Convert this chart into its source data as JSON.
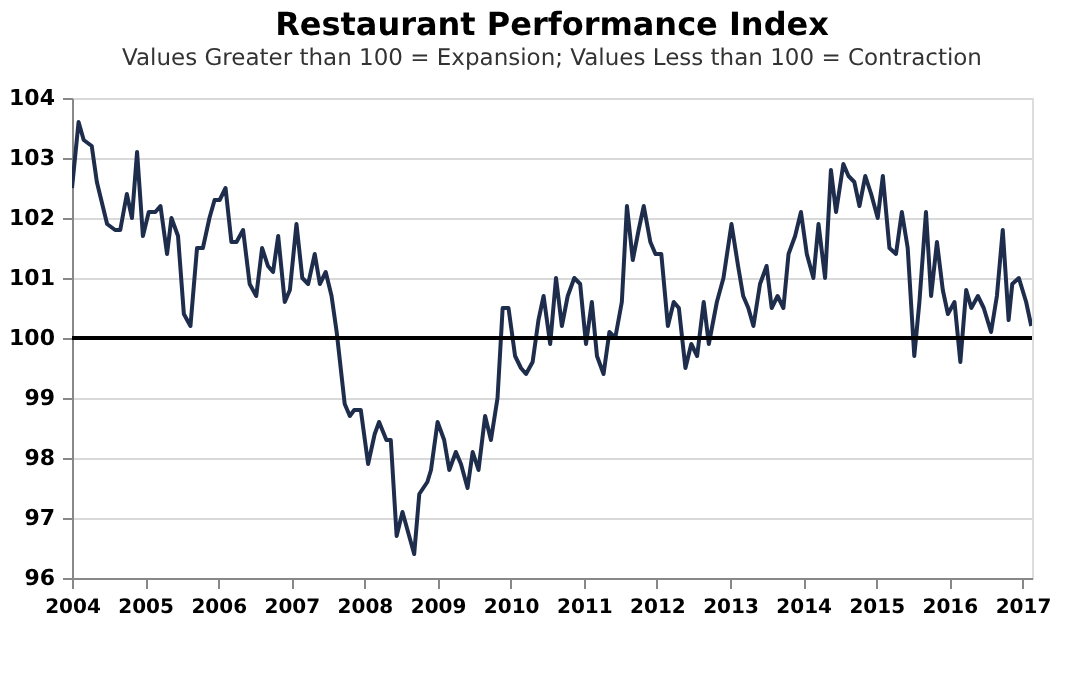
{
  "chart_data": {
    "type": "line",
    "title": "Restaurant Performance Index",
    "subtitle": "Values Greater than 100 = Expansion; Values Less than 100 = Contraction",
    "x": [
      2004.0,
      2004.09,
      2004.16,
      2004.27,
      2004.34,
      2004.48,
      2004.59,
      2004.66,
      2004.75,
      2004.82,
      2004.89,
      2004.97,
      2005.05,
      2005.14,
      2005.21,
      2005.3,
      2005.36,
      2005.45,
      2005.53,
      2005.62,
      2005.71,
      2005.79,
      2005.88,
      2005.95,
      2006.02,
      2006.1,
      2006.18,
      2006.25,
      2006.34,
      2006.43,
      2006.52,
      2006.6,
      2006.68,
      2006.75,
      2006.82,
      2006.91,
      2006.98,
      2007.07,
      2007.15,
      2007.23,
      2007.32,
      2007.39,
      2007.47,
      2007.55,
      2007.62,
      2007.73,
      2007.8,
      2007.86,
      2007.95,
      2008.05,
      2008.14,
      2008.2,
      2008.3,
      2008.36,
      2008.44,
      2008.52,
      2008.68,
      2008.75,
      2008.86,
      2008.91,
      2009.0,
      2009.09,
      2009.16,
      2009.25,
      2009.32,
      2009.41,
      2009.48,
      2009.56,
      2009.65,
      2009.73,
      2009.82,
      2009.89,
      2009.97,
      2010.06,
      2010.14,
      2010.21,
      2010.3,
      2010.38,
      2010.45,
      2010.54,
      2010.62,
      2010.7,
      2010.78,
      2010.87,
      2010.95,
      2011.03,
      2011.11,
      2011.18,
      2011.27,
      2011.35,
      2011.43,
      2011.52,
      2011.59,
      2011.67,
      2011.75,
      2011.82,
      2011.91,
      2011.98,
      2012.06,
      2012.15,
      2012.23,
      2012.3,
      2012.39,
      2012.47,
      2012.55,
      2012.64,
      2012.71,
      2012.82,
      2012.91,
      2013.02,
      2013.11,
      2013.18,
      2013.25,
      2013.32,
      2013.41,
      2013.5,
      2013.57,
      2013.65,
      2013.73,
      2013.8,
      2013.89,
      2013.97,
      2014.05,
      2014.14,
      2014.21,
      2014.3,
      2014.38,
      2014.45,
      2014.55,
      2014.62,
      2014.7,
      2014.77,
      2014.85,
      2014.93,
      2015.02,
      2015.09,
      2015.18,
      2015.27,
      2015.35,
      2015.43,
      2015.52,
      2015.59,
      2015.68,
      2015.75,
      2015.83,
      2015.91,
      2015.98,
      2016.07,
      2016.15,
      2016.23,
      2016.3,
      2016.39,
      2016.47,
      2016.57,
      2016.65,
      2016.73,
      2016.81,
      2016.86,
      2016.95,
      2017.05,
      2017.12
    ],
    "series": [
      {
        "color": "#1f2d4d",
        "values": [
          102.5,
          103.6,
          103.3,
          103.2,
          102.6,
          101.9,
          101.8,
          101.8,
          102.4,
          102.0,
          103.1,
          101.7,
          102.1,
          102.1,
          102.2,
          101.4,
          102.0,
          101.7,
          100.4,
          100.2,
          101.5,
          101.5,
          102.0,
          102.3,
          102.3,
          102.5,
          101.6,
          101.6,
          101.8,
          100.9,
          100.7,
          101.5,
          101.2,
          101.1,
          101.7,
          100.6,
          100.8,
          101.9,
          101.0,
          100.9,
          101.4,
          100.9,
          101.1,
          100.7,
          100.1,
          98.9,
          98.7,
          98.8,
          98.8,
          97.9,
          98.4,
          98.6,
          98.3,
          98.3,
          96.7,
          97.1,
          96.4,
          97.4,
          97.6,
          97.8,
          98.6,
          98.3,
          97.8,
          98.1,
          97.9,
          97.5,
          98.1,
          97.8,
          98.7,
          98.3,
          99.0,
          100.5,
          100.5,
          99.7,
          99.5,
          99.4,
          99.6,
          100.3,
          100.7,
          99.9,
          101.0,
          100.2,
          100.7,
          101.0,
          100.9,
          99.9,
          100.6,
          99.7,
          99.4,
          100.1,
          100.0,
          100.6,
          102.2,
          101.3,
          101.8,
          102.2,
          101.6,
          101.4,
          101.4,
          100.2,
          100.6,
          100.5,
          99.5,
          99.9,
          99.7,
          100.6,
          99.9,
          100.6,
          101.0,
          101.9,
          101.2,
          100.7,
          100.5,
          100.2,
          100.9,
          101.2,
          100.5,
          100.7,
          100.5,
          101.4,
          101.7,
          102.1,
          101.4,
          101.0,
          101.9,
          101.0,
          102.8,
          102.1,
          102.9,
          102.7,
          102.6,
          102.2,
          102.7,
          102.4,
          102.0,
          102.7,
          101.5,
          101.4,
          102.1,
          101.5,
          99.7,
          100.6,
          102.1,
          100.7,
          101.6,
          100.8,
          100.4,
          100.6,
          99.6,
          100.8,
          100.5,
          100.7,
          100.5,
          100.1,
          100.7,
          101.8,
          100.3,
          100.9,
          101.0,
          100.6,
          100.2
        ]
      }
    ],
    "xlim": [
      2004,
      2017.13
    ],
    "xticks": [
      2004,
      2005,
      2006,
      2007,
      2008,
      2009,
      2010,
      2011,
      2012,
      2013,
      2014,
      2015,
      2016,
      2017
    ],
    "ylim": [
      96,
      104
    ],
    "yticks": [
      96,
      97,
      98,
      99,
      100,
      101,
      102,
      103,
      104
    ],
    "ref_lines": [
      {
        "axis": "y",
        "value": 100,
        "color": "#000000"
      }
    ],
    "grid": "y",
    "legend": false
  }
}
